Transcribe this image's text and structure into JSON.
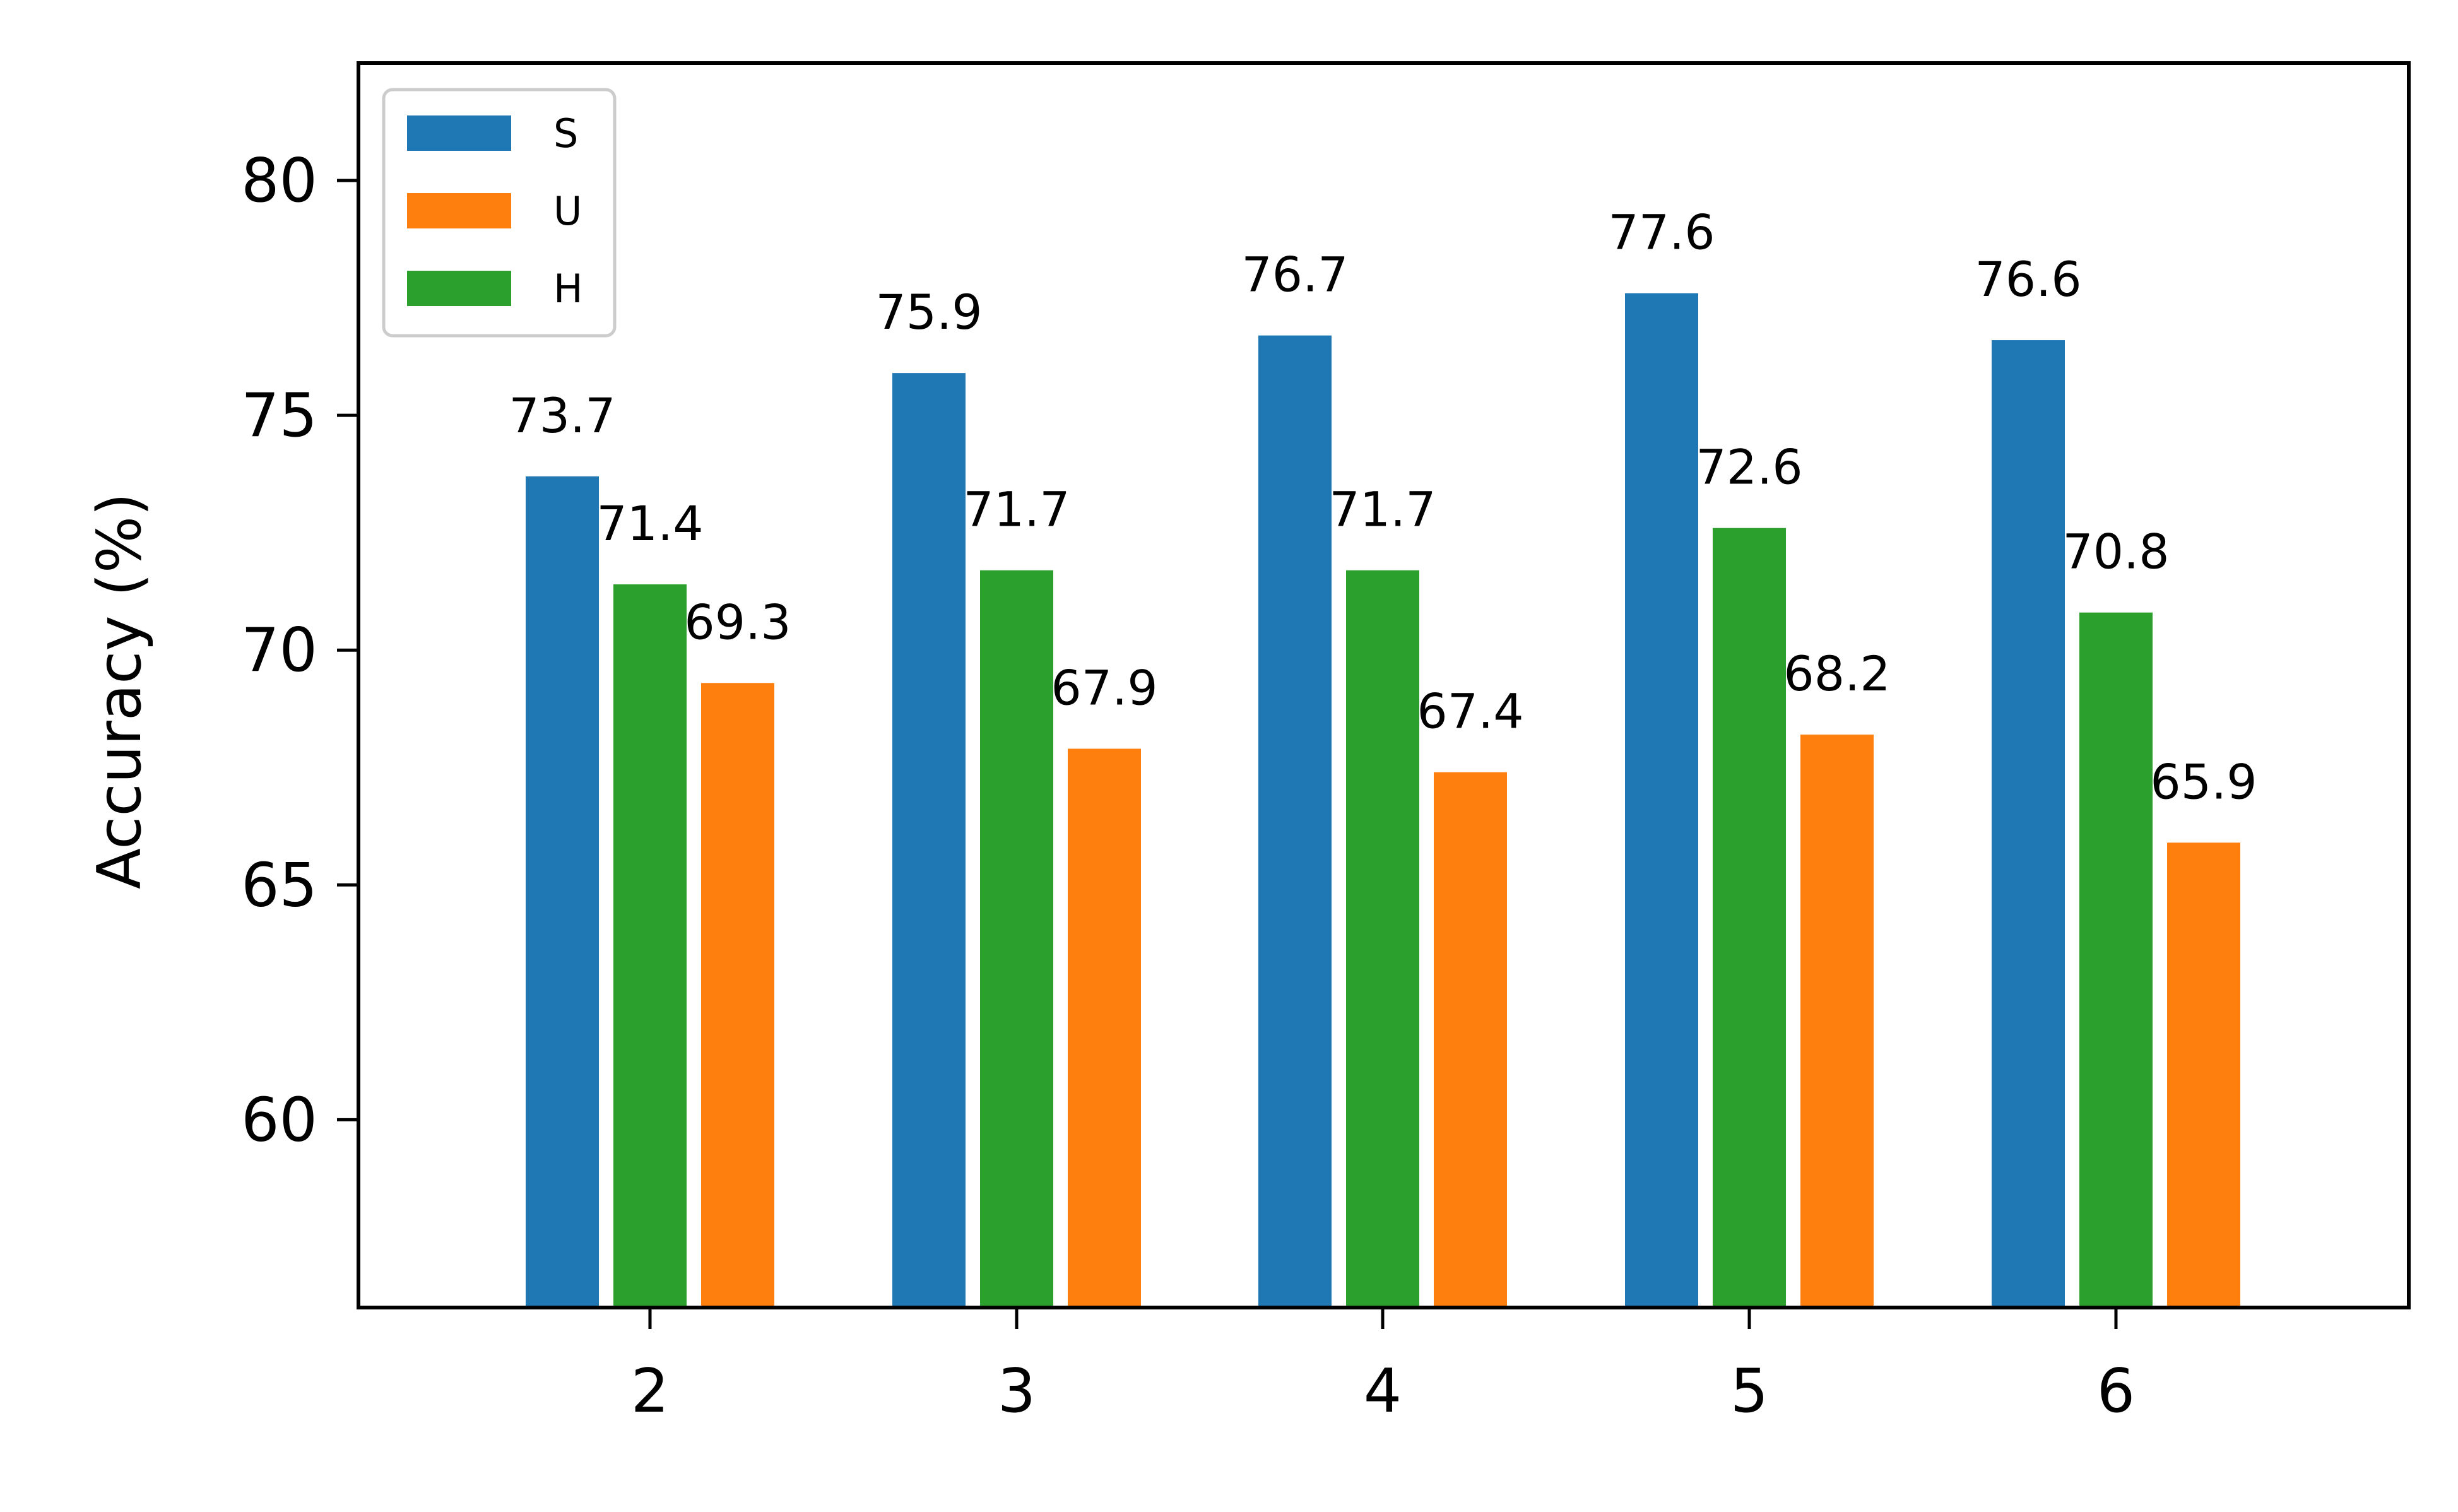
{
  "chart_data": {
    "type": "bar",
    "categories": [
      "2",
      "3",
      "4",
      "5",
      "6"
    ],
    "series": [
      {
        "name": "S",
        "color": "#1f77b4",
        "values": [
          73.7,
          75.9,
          76.7,
          77.6,
          76.6
        ]
      },
      {
        "name": "U",
        "color": "#ff7f0e",
        "values": [
          69.3,
          67.9,
          67.4,
          68.2,
          65.9
        ]
      },
      {
        "name": "H",
        "color": "#2ca02c",
        "values": [
          71.4,
          71.7,
          71.7,
          72.6,
          70.8
        ]
      }
    ],
    "bar_order": [
      "S",
      "H",
      "U"
    ],
    "title": "",
    "xlabel": "",
    "ylabel": "Accuracy (%)",
    "ylim": [
      56,
      82.5
    ],
    "yticks": [
      "60",
      "65",
      "70",
      "75",
      "80"
    ],
    "grid": false,
    "legend_position": "top-left"
  }
}
